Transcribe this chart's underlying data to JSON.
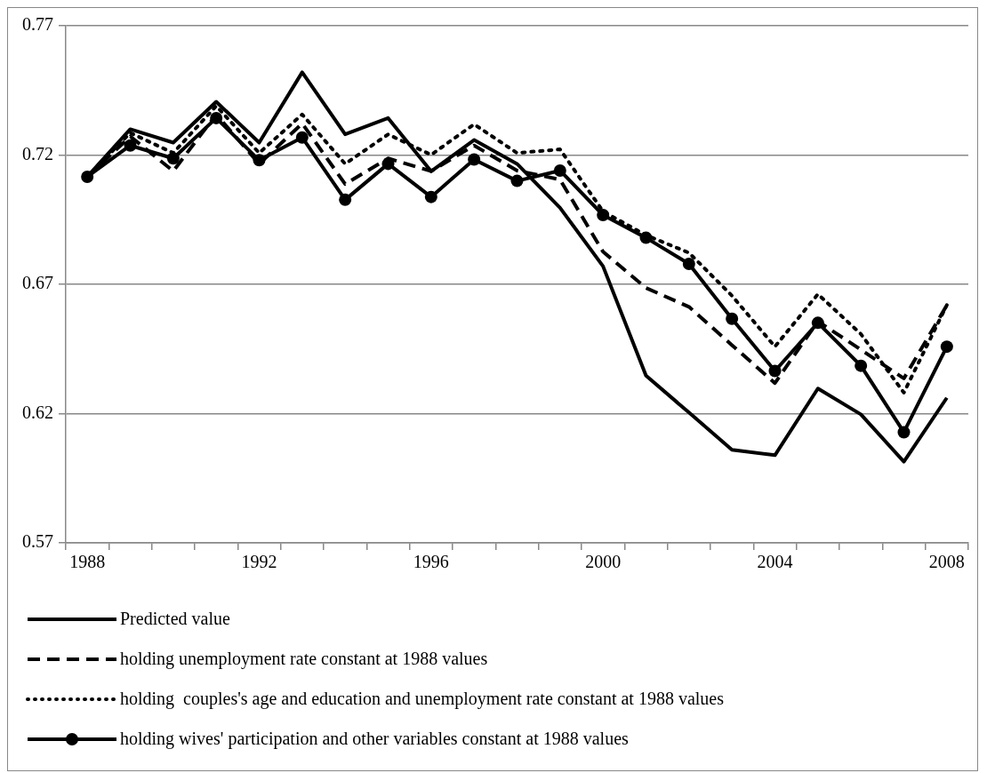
{
  "chart_data": {
    "type": "line",
    "categories": [
      "1988",
      null,
      null,
      null,
      "1992",
      null,
      null,
      null,
      "1996",
      null,
      null,
      null,
      "2000",
      null,
      null,
      null,
      "2004",
      null,
      null,
      null,
      "2008"
    ],
    "series": [
      {
        "name": "Predicted value",
        "color": "#000000",
        "line_style": "solid",
        "marker": "none",
        "values": [
          0.7116,
          0.73,
          0.7248,
          0.7406,
          0.7248,
          0.752,
          0.728,
          0.7343,
          0.7137,
          0.7258,
          0.7166,
          0.6996,
          0.677,
          0.6347,
          0.6204,
          0.606,
          0.6039,
          0.6297,
          0.6197,
          0.6014,
          0.6261
        ]
      },
      {
        "name": "holding unemployment rate constant at 1988 values",
        "color": "#000000",
        "line_style": "dashed",
        "marker": "none",
        "values": [
          0.7116,
          0.7272,
          0.7138,
          0.7357,
          0.7166,
          0.7322,
          0.7088,
          0.7187,
          0.7138,
          0.7237,
          0.714,
          0.7105,
          0.6826,
          0.6686,
          0.6613,
          0.6465,
          0.6318,
          0.6557,
          0.6447,
          0.6336,
          0.6619
        ]
      },
      {
        "name": "holding  couples's age and education and unemployment rate constant at 1988 values",
        "color": "#000000",
        "line_style": "dotted",
        "marker": "none",
        "values": [
          0.7116,
          0.7286,
          0.7208,
          0.739,
          0.7208,
          0.7357,
          0.7166,
          0.728,
          0.7201,
          0.7319,
          0.7208,
          0.7222,
          0.6982,
          0.689,
          0.6822,
          0.6656,
          0.6459,
          0.6662,
          0.6508,
          0.6281,
          0.662
        ]
      },
      {
        "name": "holding wives' participation and other variables constant at 1988 values",
        "color": "#000000",
        "line_style": "solid",
        "marker": "circle",
        "values": [
          0.7116,
          0.7237,
          0.7187,
          0.7343,
          0.718,
          0.7268,
          0.7027,
          0.7166,
          0.7038,
          0.7183,
          0.71,
          0.714,
          0.6968,
          0.688,
          0.6779,
          0.6567,
          0.6365,
          0.6551,
          0.6385,
          0.6128,
          0.6459
        ]
      }
    ],
    "ylim": [
      0.57,
      0.77
    ],
    "yticks": [
      0.57,
      0.62,
      0.67,
      0.72,
      0.77
    ],
    "grid": "y",
    "legend": "bottom"
  }
}
